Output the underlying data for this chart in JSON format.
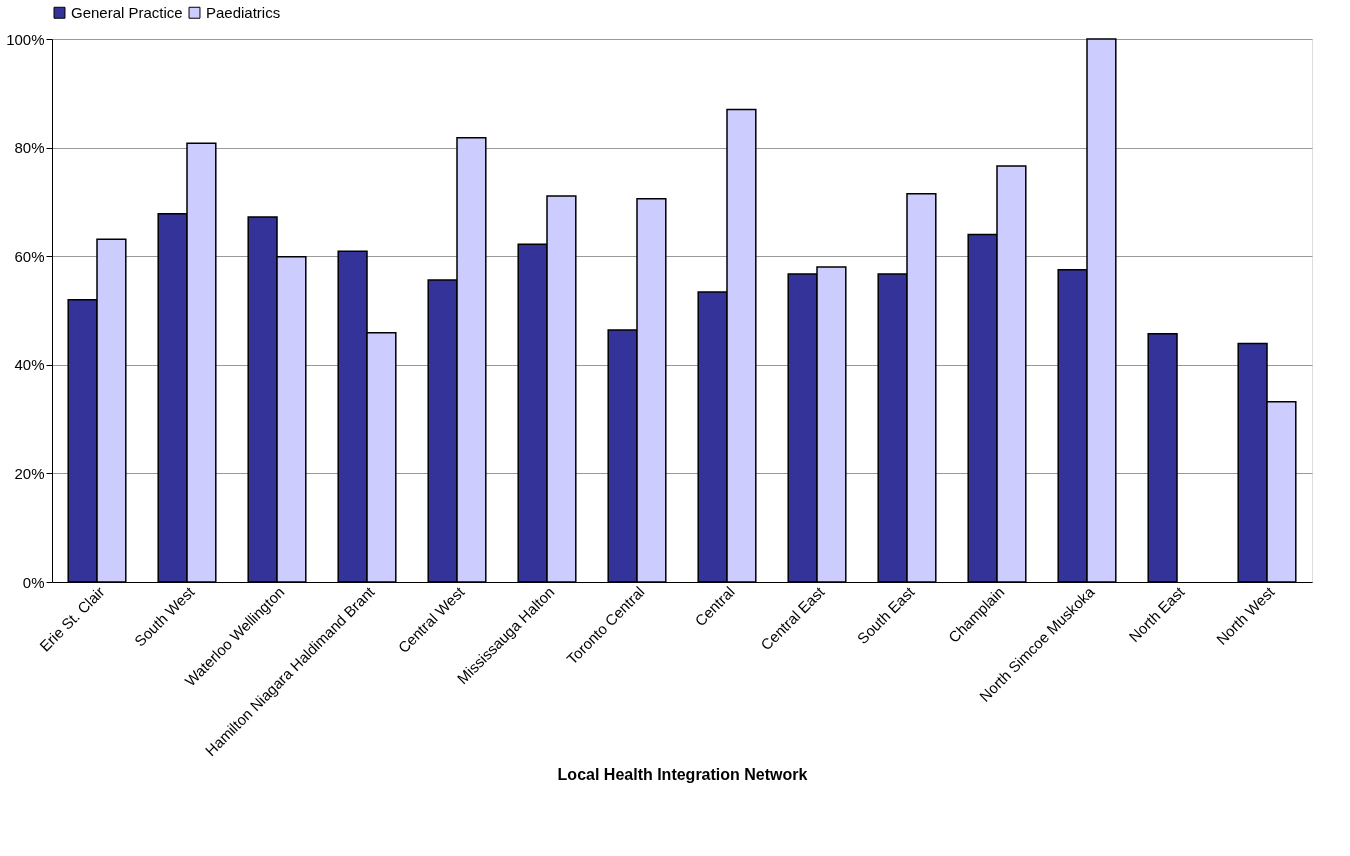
{
  "chart_data": {
    "type": "bar",
    "xlabel": "Local Health Integration Network",
    "categories": [
      "Erie St. Clair",
      "South West",
      "Waterloo Wellington",
      "Hamilton Niagara Haldimand Brant",
      "Central West",
      "Mississauga Halton",
      "Toronto Central",
      "Central",
      "Central East",
      "South East",
      "Champlain",
      "North Simcoe Muskoka",
      "North East",
      "North West"
    ],
    "series": [
      {
        "name": "General Practice",
        "color": "#333399",
        "values": [
          52.0,
          67.8,
          67.2,
          60.9,
          55.6,
          62.2,
          46.4,
          53.4,
          56.7,
          56.7,
          64.0,
          57.5,
          45.7,
          43.9
        ]
      },
      {
        "name": "Paediatrics",
        "color": "#ccccff",
        "values": [
          63.1,
          80.8,
          59.9,
          45.9,
          81.8,
          71.1,
          70.6,
          87.0,
          58.0,
          71.5,
          76.6,
          100,
          null,
          33.2
        ]
      }
    ],
    "ylim": [
      0,
      100
    ],
    "yticks": [
      {
        "value": 0,
        "label": "0%"
      },
      {
        "value": 20,
        "label": "20%"
      },
      {
        "value": 40,
        "label": "40%"
      },
      {
        "value": 60,
        "label": "60%"
      },
      {
        "value": 80,
        "label": "80%"
      },
      {
        "value": 100,
        "label": "100%"
      }
    ],
    "grid": "y",
    "legend": "top"
  }
}
